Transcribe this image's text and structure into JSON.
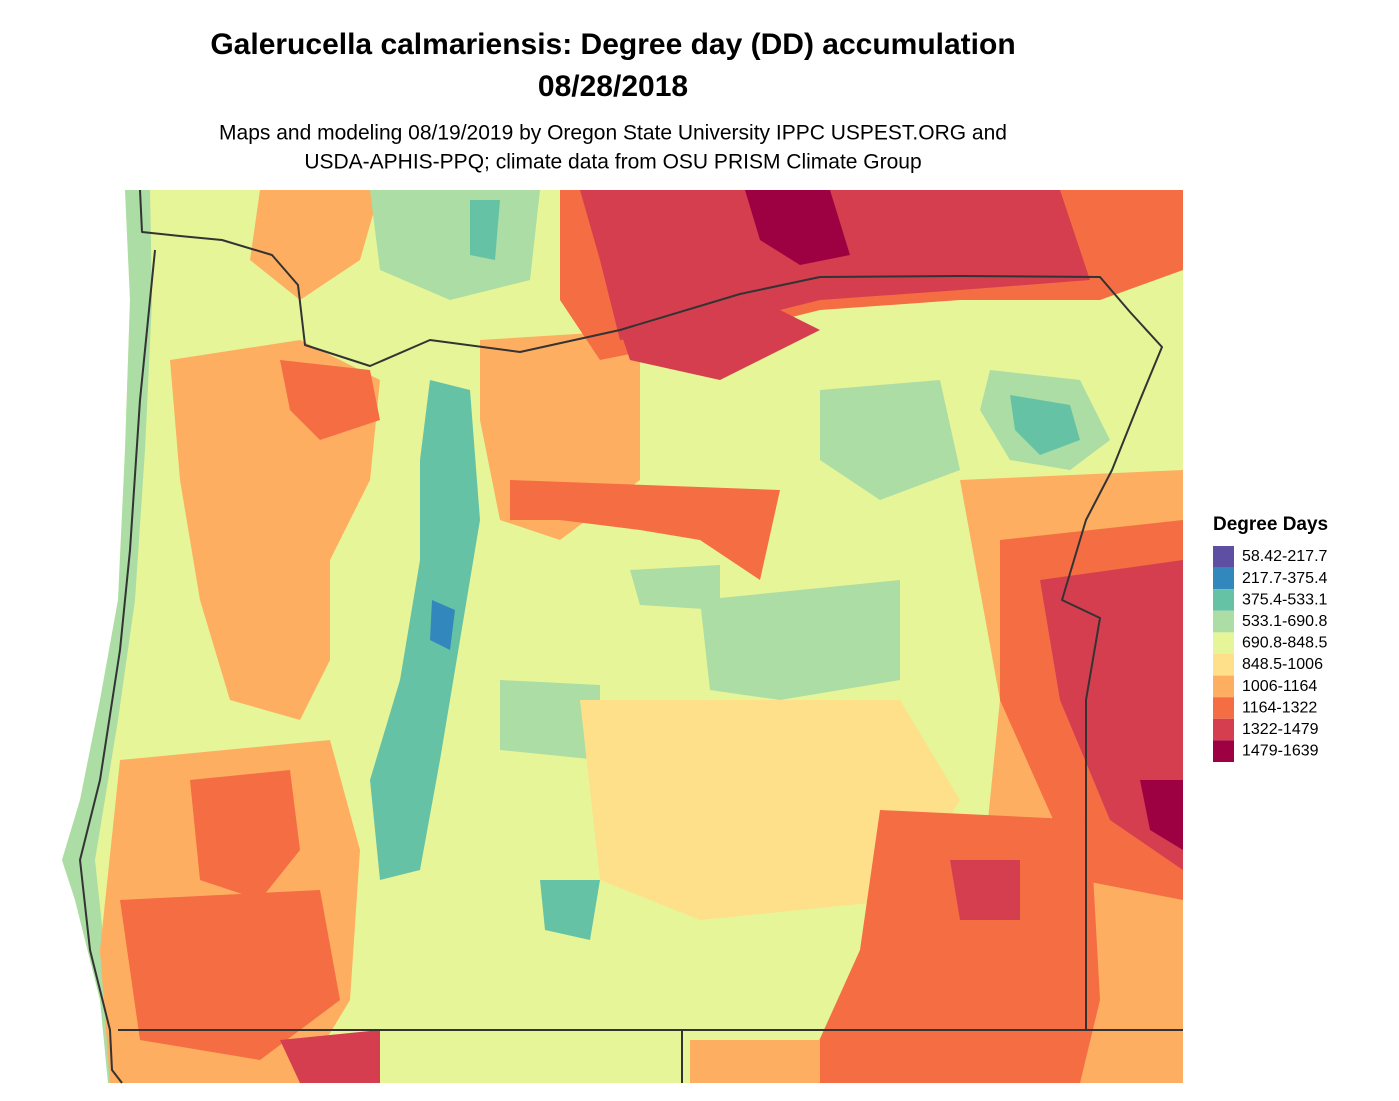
{
  "title": [
    "Galerucella calmariensis: Degree day (DD) accumulation",
    "08/28/2018"
  ],
  "subtitle": [
    "Maps and modeling 08/19/2019 by Oregon State University IPPC USPEST.ORG and",
    "USDA-APHIS-PPQ; climate data from OSU PRISM Climate Group"
  ],
  "legend": {
    "title": "Degree Days",
    "items": [
      {
        "label": "58.42-217.7",
        "color": "#5e4fa2"
      },
      {
        "label": "217.7-375.4",
        "color": "#3288bd"
      },
      {
        "label": "375.4-533.1",
        "color": "#66c2a5"
      },
      {
        "label": "533.1-690.8",
        "color": "#abdda4"
      },
      {
        "label": "690.8-848.5",
        "color": "#e6f598"
      },
      {
        "label": "848.5-1006",
        "color": "#fee08b"
      },
      {
        "label": "1006-1164",
        "color": "#fdae61"
      },
      {
        "label": "1164-1322",
        "color": "#f46d43"
      },
      {
        "label": "1322-1479",
        "color": "#d53e4f"
      },
      {
        "label": "1479-1639",
        "color": "#9e0142"
      }
    ]
  }
}
